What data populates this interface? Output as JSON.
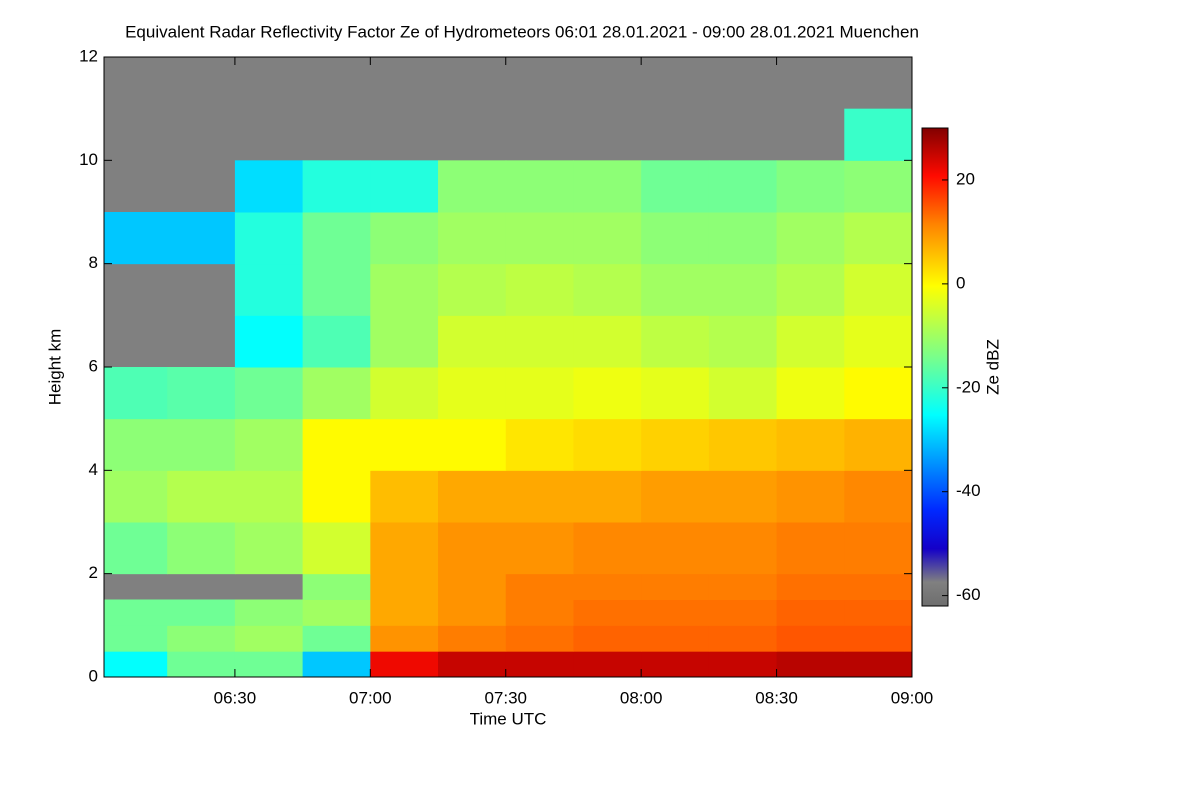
{
  "chart_data": {
    "type": "heatmap",
    "title": "Equivalent Radar Reflectivity Factor Ze of Hydrometeors   06:01 28.01.2021 - 09:00 28.01.2021 Muenchen",
    "xlabel": "Time UTC",
    "ylabel": "Height km",
    "colorbar_label": "Ze dBZ",
    "x_edges": [
      361,
      375,
      390,
      405,
      420,
      435,
      450,
      465,
      480,
      495,
      510,
      525,
      540
    ],
    "y_edges": [
      0,
      0.5,
      1,
      1.5,
      2,
      3,
      4,
      5,
      6,
      7,
      8,
      9,
      10,
      11,
      12
    ],
    "z": [
      [
        -25,
        -15,
        -15,
        -30,
        22,
        25,
        25,
        25,
        25,
        25,
        26,
        26
      ],
      [
        -15,
        -12,
        -10,
        -15,
        10,
        12,
        13,
        14,
        14,
        14,
        15,
        15
      ],
      [
        -15,
        -15,
        -12,
        -10,
        8,
        10,
        12,
        13,
        13,
        13,
        14,
        14
      ],
      [
        null,
        null,
        null,
        -12,
        8,
        10,
        12,
        12,
        12,
        12,
        13,
        13
      ],
      [
        -15,
        -12,
        -10,
        -5,
        8,
        10,
        10,
        11,
        11,
        11,
        12,
        12
      ],
      [
        -10,
        -8,
        -8,
        0,
        6,
        8,
        8,
        8,
        9,
        9,
        10,
        11
      ],
      [
        -12,
        -12,
        -10,
        0,
        0,
        0,
        2,
        3,
        4,
        5,
        6,
        7
      ],
      [
        -18,
        -17,
        -15,
        -10,
        -5,
        -3,
        -3,
        -2,
        -3,
        -5,
        -2,
        0
      ],
      [
        null,
        null,
        -25,
        -18,
        -10,
        -5,
        -5,
        -5,
        -7,
        -8,
        -5,
        -3
      ],
      [
        null,
        null,
        -22,
        -15,
        -10,
        -8,
        -7,
        -8,
        -10,
        -10,
        -8,
        -5
      ],
      [
        -30,
        -30,
        -22,
        -15,
        -12,
        -10,
        -10,
        -10,
        -12,
        -12,
        -10,
        -8
      ],
      [
        null,
        null,
        -28,
        -22,
        -22,
        -12,
        -12,
        -12,
        -15,
        -15,
        -13,
        -12
      ],
      [
        null,
        null,
        null,
        null,
        null,
        null,
        null,
        null,
        null,
        null,
        null,
        -20
      ],
      [
        null,
        null,
        null,
        null,
        null,
        null,
        null,
        null,
        null,
        null,
        null,
        null
      ]
    ],
    "xlim": [
      361,
      540
    ],
    "xticks": [
      {
        "value": 390,
        "label": "06:30"
      },
      {
        "value": 420,
        "label": "07:00"
      },
      {
        "value": 450,
        "label": "07:30"
      },
      {
        "value": 480,
        "label": "08:00"
      },
      {
        "value": 510,
        "label": "08:30"
      },
      {
        "value": 540,
        "label": "09:00"
      }
    ],
    "ylim": [
      0,
      12
    ],
    "yticks": [
      0,
      2,
      4,
      6,
      8,
      10,
      12
    ],
    "zlim": [
      -62,
      30
    ],
    "zticks": [
      -60,
      -40,
      -20,
      0,
      20
    ]
  }
}
